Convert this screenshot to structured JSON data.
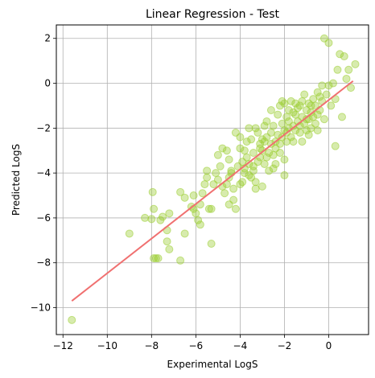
{
  "chart_data": {
    "type": "scatter",
    "title": "Linear Regression - Test",
    "xlabel": "Experimental LogS",
    "ylabel": "Predicted LogS",
    "xlim": [
      -12.3,
      1.8
    ],
    "ylim": [
      -11.2,
      2.6
    ],
    "xticks": [
      -12,
      -10,
      -8,
      -6,
      -4,
      -2,
      0
    ],
    "yticks": [
      -10,
      -8,
      -6,
      -4,
      -2,
      0,
      2
    ],
    "xtick_labels": [
      "−12",
      "−10",
      "−8",
      "−6",
      "−4",
      "−2",
      "0"
    ],
    "ytick_labels": [
      "−10",
      "−8",
      "−6",
      "−4",
      "−2",
      "0",
      "2"
    ],
    "grid": true,
    "colors": {
      "points": "#9acd32",
      "line": "#f07070"
    },
    "fit_line": {
      "x": [
        -11.6,
        1.1
      ],
      "y": [
        -9.7,
        0.1
      ]
    },
    "points": [
      [
        -11.6,
        -10.55
      ],
      [
        -9.0,
        -6.7
      ],
      [
        -8.3,
        -6.0
      ],
      [
        -8.0,
        -6.05
      ],
      [
        -7.9,
        -5.6
      ],
      [
        -7.95,
        -4.85
      ],
      [
        -7.8,
        -7.8
      ],
      [
        -7.9,
        -7.8
      ],
      [
        -7.7,
        -7.8
      ],
      [
        -7.6,
        -6.1
      ],
      [
        -7.5,
        -5.95
      ],
      [
        -7.3,
        -6.55
      ],
      [
        -7.2,
        -5.8
      ],
      [
        -7.3,
        -7.05
      ],
      [
        -7.2,
        -7.4
      ],
      [
        -6.7,
        -7.9
      ],
      [
        -6.7,
        -4.85
      ],
      [
        -6.5,
        -5.1
      ],
      [
        -6.5,
        -6.7
      ],
      [
        -6.0,
        -5.8
      ],
      [
        -5.9,
        -6.1
      ],
      [
        -5.8,
        -6.3
      ],
      [
        -5.7,
        -4.9
      ],
      [
        -5.6,
        -4.5
      ],
      [
        -5.8,
        -5.4
      ],
      [
        -5.5,
        -4.2
      ],
      [
        -5.4,
        -5.6
      ],
      [
        -5.3,
        -5.6
      ],
      [
        -5.3,
        -7.15
      ],
      [
        -5.1,
        -4.0
      ],
      [
        -5.0,
        -4.3
      ],
      [
        -4.9,
        -3.7
      ],
      [
        -4.8,
        -4.6
      ],
      [
        -4.7,
        -4.9
      ],
      [
        -4.6,
        -4.5
      ],
      [
        -4.5,
        -5.4
      ],
      [
        -4.5,
        -4.2
      ],
      [
        -4.4,
        -3.9
      ],
      [
        -4.3,
        -5.2
      ],
      [
        -4.2,
        -5.6
      ],
      [
        -4.1,
        -3.7
      ],
      [
        -4.0,
        -4.5
      ],
      [
        -4.0,
        -2.9
      ],
      [
        -3.9,
        -3.5
      ],
      [
        -3.8,
        -3.8
      ],
      [
        -3.8,
        -4.0
      ],
      [
        -3.7,
        -3.3
      ],
      [
        -3.7,
        -2.6
      ],
      [
        -3.6,
        -3.6
      ],
      [
        -3.5,
        -4.2
      ],
      [
        -3.5,
        -2.5
      ],
      [
        -3.4,
        -3.9
      ],
      [
        -3.4,
        -3.1
      ],
      [
        -3.3,
        -4.7
      ],
      [
        -3.3,
        -4.4
      ],
      [
        -3.2,
        -3.5
      ],
      [
        -3.2,
        -2.2
      ],
      [
        -3.1,
        -2.9
      ],
      [
        -3.1,
        -3.3
      ],
      [
        -3.0,
        -4.6
      ],
      [
        -3.0,
        -3.0
      ],
      [
        -2.9,
        -2.6
      ],
      [
        -2.9,
        -3.6
      ],
      [
        -2.8,
        -1.7
      ],
      [
        -2.8,
        -2.4
      ],
      [
        -2.7,
        -3.1
      ],
      [
        -2.7,
        -3.9
      ],
      [
        -2.6,
        -2.7
      ],
      [
        -2.6,
        -2.2
      ],
      [
        -2.5,
        -3.2
      ],
      [
        -2.5,
        -1.9
      ],
      [
        -2.4,
        -2.6
      ],
      [
        -2.4,
        -3.6
      ],
      [
        -2.3,
        -1.4
      ],
      [
        -2.3,
        -2.3
      ],
      [
        -2.2,
        -2.7
      ],
      [
        -2.2,
        -3.1
      ],
      [
        -2.1,
        -1.8
      ],
      [
        -2.1,
        -2.4
      ],
      [
        -2.0,
        -3.4
      ],
      [
        -2.0,
        -2.1
      ],
      [
        -1.9,
        -1.5
      ],
      [
        -1.9,
        -2.6
      ],
      [
        -1.8,
        -2.0
      ],
      [
        -1.8,
        -1.7
      ],
      [
        -1.7,
        -2.4
      ],
      [
        -1.7,
        -0.8
      ],
      [
        -1.6,
        -1.9
      ],
      [
        -1.6,
        -2.6
      ],
      [
        -1.5,
        -1.4
      ],
      [
        -1.5,
        -2.1
      ],
      [
        -1.4,
        -1.1
      ],
      [
        -1.4,
        -1.7
      ],
      [
        -1.3,
        -2.2
      ],
      [
        -1.3,
        -1.0
      ],
      [
        -1.2,
        -1.5
      ],
      [
        -1.2,
        -2.6
      ],
      [
        -1.1,
        -1.8
      ],
      [
        -1.1,
        -0.5
      ],
      [
        -1.0,
        -1.2
      ],
      [
        -1.0,
        -2.1
      ],
      [
        -0.9,
        -0.9
      ],
      [
        -0.9,
        -1.6
      ],
      [
        -0.8,
        -1.3
      ],
      [
        -0.8,
        -2.0
      ],
      [
        -0.7,
        -0.7
      ],
      [
        -0.7,
        -1.5
      ],
      [
        -0.6,
        -1.0
      ],
      [
        -0.6,
        -1.8
      ],
      [
        -0.5,
        -0.4
      ],
      [
        -0.5,
        -2.1
      ],
      [
        -0.4,
        -1.2
      ],
      [
        -0.3,
        -0.1
      ],
      [
        -0.3,
        -0.8
      ],
      [
        -0.2,
        2.0
      ],
      [
        -0.2,
        -1.6
      ],
      [
        -0.1,
        -0.5
      ],
      [
        0.0,
        1.8
      ],
      [
        0.0,
        -0.1
      ],
      [
        0.1,
        -1.0
      ],
      [
        0.2,
        0.0
      ],
      [
        0.3,
        -0.7
      ],
      [
        0.3,
        -2.8
      ],
      [
        0.4,
        0.6
      ],
      [
        0.5,
        1.3
      ],
      [
        0.6,
        -1.5
      ],
      [
        0.7,
        1.2
      ],
      [
        0.8,
        0.2
      ],
      [
        0.9,
        0.6
      ],
      [
        1.0,
        -0.2
      ],
      [
        1.2,
        0.85
      ],
      [
        -2.0,
        -0.9
      ],
      [
        -3.6,
        -2.0
      ],
      [
        -4.2,
        -2.2
      ],
      [
        -4.5,
        -3.4
      ],
      [
        -5.0,
        -3.2
      ],
      [
        -4.8,
        -2.9
      ],
      [
        -3.0,
        -2.5
      ],
      [
        -2.6,
        -1.2
      ],
      [
        -1.5,
        -0.9
      ],
      [
        -1.2,
        -0.8
      ],
      [
        -3.9,
        -4.4
      ],
      [
        -4.6,
        -3.0
      ],
      [
        -5.2,
        -4.5
      ],
      [
        -6.1,
        -5.0
      ],
      [
        -3.4,
        -3.7
      ],
      [
        -2.9,
        -1.9
      ],
      [
        -2.2,
        -1.0
      ],
      [
        -1.9,
        -2.2
      ],
      [
        -1.0,
        -1.6
      ],
      [
        -0.5,
        -1.4
      ],
      [
        -2.5,
        -3.8
      ],
      [
        -3.6,
        -4.1
      ],
      [
        -4.0,
        -2.4
      ],
      [
        -4.4,
        -4.0
      ],
      [
        -5.5,
        -3.9
      ],
      [
        -6.2,
        -5.5
      ],
      [
        -6.1,
        -5.6
      ],
      [
        -3.3,
        -2.0
      ],
      [
        -2.4,
        -2.9
      ],
      [
        -1.6,
        -1.3
      ],
      [
        -0.9,
        -2.3
      ],
      [
        -2.0,
        -4.1
      ],
      [
        -2.8,
        -3.3
      ],
      [
        -3.1,
        -2.7
      ],
      [
        -3.8,
        -3.0
      ],
      [
        -4.3,
        -4.7
      ],
      [
        -1.3,
        -1.9
      ],
      [
        -0.4,
        -0.6
      ],
      [
        -0.8,
        -1.0
      ],
      [
        -2.1,
        -0.8
      ],
      [
        -1.8,
        -1.2
      ]
    ]
  }
}
